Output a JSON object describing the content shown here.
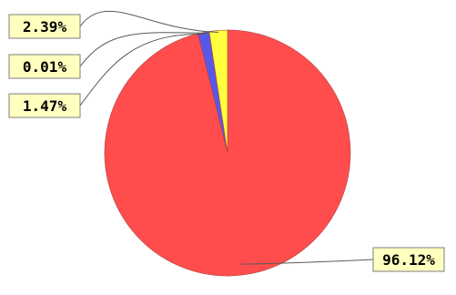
{
  "chart_data": {
    "type": "pie",
    "start_angle_deg": 0,
    "direction": "clockwise",
    "slices": [
      {
        "label": "96.12%",
        "value": 96.12,
        "color": "#ff4d4d"
      },
      {
        "label": "1.47%",
        "value": 1.47,
        "color": "#5858e8"
      },
      {
        "label": "0.01%",
        "value": 0.01,
        "color": "#20a020"
      },
      {
        "label": "2.39%",
        "value": 2.39,
        "color": "#ffff40"
      }
    ],
    "legend": "none",
    "data_labels": "outside-with-leader-lines"
  }
}
